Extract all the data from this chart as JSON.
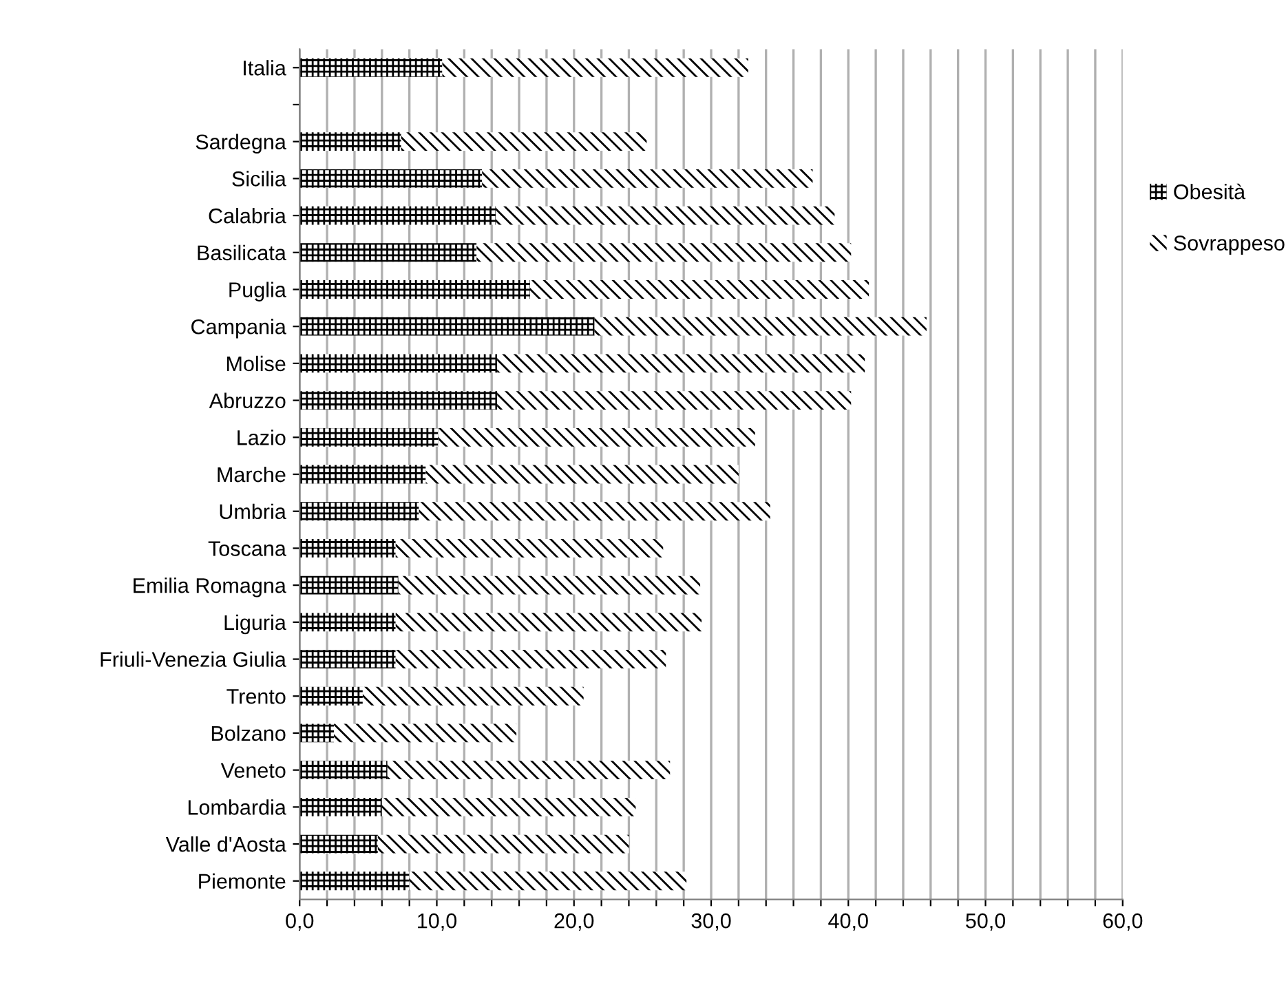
{
  "chart_data": {
    "type": "bar",
    "orientation": "horizontal",
    "stacked": true,
    "categories": [
      "Italia",
      null,
      "Sardegna",
      "Sicilia",
      "Calabria",
      "Basilicata",
      "Puglia",
      "Campania",
      "Molise",
      "Abruzzo",
      "Lazio",
      "Marche",
      "Umbria",
      "Toscana",
      "Emilia Romagna",
      "Liguria",
      "Friuli-Venezia Giulia",
      "Trento",
      "Bolzano",
      "Veneto",
      "Lombardia",
      "Valle d'Aosta",
      "Piemonte"
    ],
    "series": [
      {
        "name": "Obesità",
        "color": "#000000",
        "values": [
          10.4,
          null,
          7.4,
          13.3,
          14.3,
          12.9,
          16.8,
          21.5,
          14.4,
          14.4,
          10.1,
          9.2,
          8.7,
          7.0,
          7.2,
          7.0,
          7.0,
          4.6,
          2.5,
          6.4,
          6.0,
          5.7,
          8.0
        ]
      },
      {
        "name": "Sovrappeso",
        "color": "#000000",
        "values": [
          22.3,
          null,
          17.9,
          24.1,
          24.7,
          27.3,
          24.7,
          24.2,
          26.8,
          25.8,
          23.1,
          22.8,
          25.6,
          19.5,
          22.0,
          22.3,
          19.7,
          16.1,
          13.3,
          20.6,
          18.5,
          18.3,
          20.2
        ]
      }
    ],
    "xlim": [
      0,
      60
    ],
    "xticks": [
      {
        "value": 0,
        "label": "0,0"
      },
      {
        "value": 2,
        "label": null
      },
      {
        "value": 4,
        "label": null
      },
      {
        "value": 6,
        "label": null
      },
      {
        "value": 8,
        "label": null
      },
      {
        "value": 10,
        "label": "10,0"
      },
      {
        "value": 12,
        "label": null
      },
      {
        "value": 14,
        "label": null
      },
      {
        "value": 16,
        "label": null
      },
      {
        "value": 18,
        "label": null
      },
      {
        "value": 20,
        "label": "20,0"
      },
      {
        "value": 22,
        "label": null
      },
      {
        "value": 24,
        "label": null
      },
      {
        "value": 26,
        "label": null
      },
      {
        "value": 28,
        "label": null
      },
      {
        "value": 30,
        "label": "30,0"
      },
      {
        "value": 32,
        "label": null
      },
      {
        "value": 34,
        "label": null
      },
      {
        "value": 36,
        "label": null
      },
      {
        "value": 38,
        "label": null
      },
      {
        "value": 40,
        "label": "40,0"
      },
      {
        "value": 42,
        "label": null
      },
      {
        "value": 44,
        "label": null
      },
      {
        "value": 46,
        "label": null
      },
      {
        "value": 48,
        "label": null
      },
      {
        "value": 50,
        "label": "50,0"
      },
      {
        "value": 52,
        "label": null
      },
      {
        "value": 54,
        "label": null
      },
      {
        "value": 56,
        "label": null
      },
      {
        "value": 58,
        "label": null
      },
      {
        "value": 60,
        "label": "60,0"
      }
    ],
    "grid": "x",
    "legend": "right"
  }
}
